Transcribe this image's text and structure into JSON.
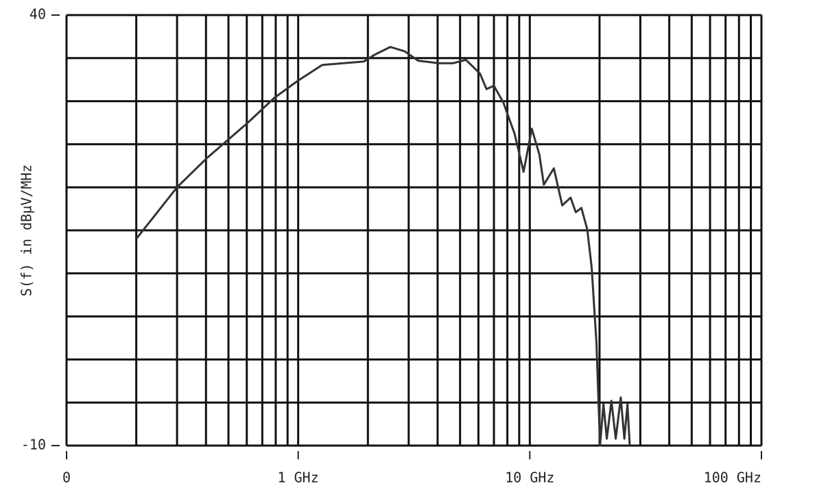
{
  "chart_data": {
    "type": "line",
    "ylabel": "S(f) in dBµV/MHz",
    "x": [
      0.2,
      0.3,
      0.4,
      0.6,
      0.79,
      1,
      1.27,
      1.56,
      1.92,
      2.14,
      2.5,
      2.88,
      3.3,
      4.06,
      4.65,
      5.3,
      6.1,
      6.5,
      7.0,
      7.7,
      8.6,
      9.4,
      10.2,
      11,
      11.5,
      12.7,
      13.8,
      15,
      15.8,
      16.7,
      17.7,
      18.5,
      19.4,
      20.1,
      20.8,
      21.5,
      22.5,
      23.5,
      24.7,
      25.6,
      26.4,
      27
    ],
    "series": [
      {
        "name": "S(f)",
        "color": "#333333",
        "values": [
          14.0,
          20.0,
          23.3,
          27.4,
          30.4,
          32.4,
          34.2,
          34.4,
          34.6,
          35.4,
          36.3,
          35.8,
          34.7,
          34.4,
          34.4,
          34.8,
          33.2,
          31.4,
          31.8,
          29.8,
          26.2,
          21.8,
          26.8,
          23.8,
          20.3,
          22.2,
          17.9,
          18.8,
          17.1,
          17.6,
          15.1,
          10.7,
          1.9,
          -10,
          -5.2,
          -9.2,
          -4.8,
          -9.2,
          -4.4,
          -9.2,
          -5.2,
          -10
        ]
      }
    ],
    "xscale": "log",
    "xlim": [
      0.1,
      100
    ],
    "xticks": [
      {
        "value": 0.1,
        "label": "0"
      },
      {
        "value": 1,
        "label": "1 GHz"
      },
      {
        "value": 10,
        "label": "10 GHz"
      },
      {
        "value": 100,
        "label": "100 GHz"
      }
    ],
    "xgrid": [
      0.1,
      0.2,
      0.3,
      0.4,
      0.5,
      0.6,
      0.7,
      0.8,
      0.9,
      1,
      2,
      3,
      4,
      5,
      6,
      7,
      8,
      9,
      10,
      20,
      30,
      40,
      50,
      60,
      70,
      80,
      90,
      100
    ],
    "ylim": [
      -10,
      40
    ],
    "yticks": [
      -10,
      40
    ],
    "ygrid": [
      -10,
      -5,
      0,
      5,
      10,
      15,
      20,
      25,
      30,
      35,
      40
    ],
    "grid": true
  }
}
